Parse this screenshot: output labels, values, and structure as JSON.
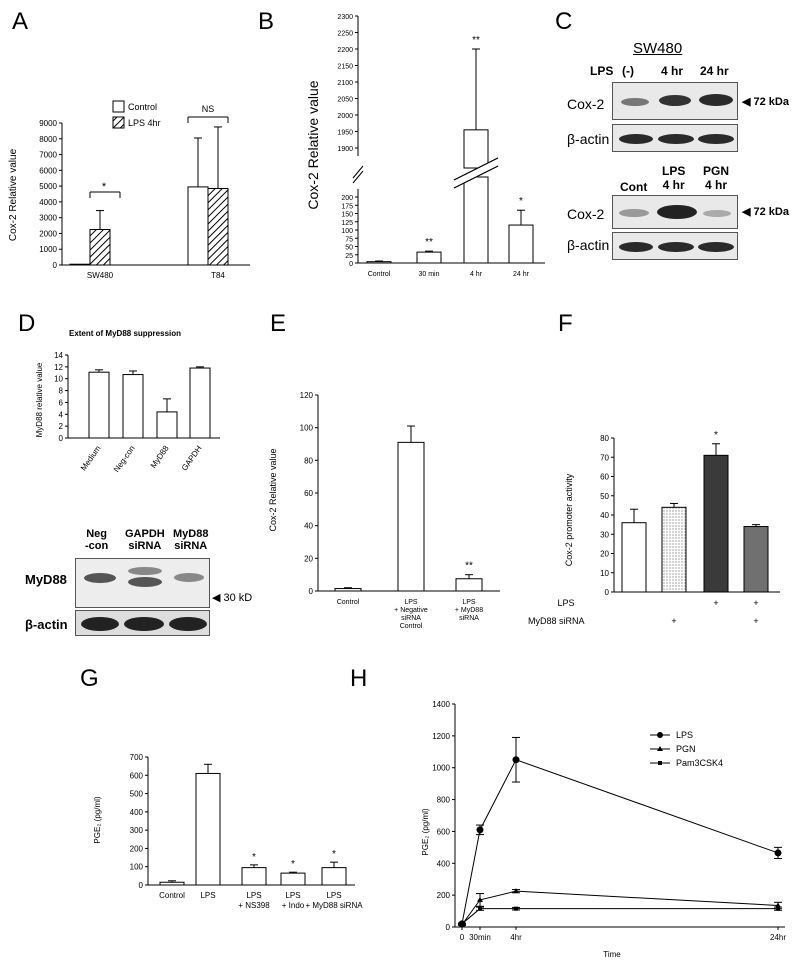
{
  "panels": {
    "A": {
      "label": "A"
    },
    "B": {
      "label": "B"
    },
    "C": {
      "label": "C",
      "title": "SW480",
      "lps_label": "LPS",
      "lanes1": [
        "(-)",
        "4 hr",
        "24 hr"
      ],
      "row1": "Cox-2",
      "row2": "β-actin",
      "kda1": "◀ 72 kDa",
      "lanes2": [
        "Cont",
        "LPS\n4 hr",
        "PGN\n4 hr"
      ],
      "row3": "Cox-2",
      "row4": "β-actin",
      "kda2": "◀ 72 kDa"
    },
    "D": {
      "label": "D",
      "lanes": [
        "Neg\n-con",
        "GAPDH\nsiRNA",
        "MyD88\nsiRNA"
      ],
      "row1": "MyD88",
      "row2": "β-actin",
      "kd": "◀ 30 kD"
    },
    "E": {
      "label": "E"
    },
    "F": {
      "label": "F"
    },
    "G": {
      "label": "G"
    },
    "H": {
      "label": "H"
    }
  },
  "chart_data": [
    {
      "id": "A",
      "type": "bar",
      "categories": [
        "SW480",
        "T84"
      ],
      "series": [
        {
          "name": "Control",
          "values": [
            50,
            4950
          ],
          "errors": [
            0,
            3100
          ]
        },
        {
          "name": "LPS 4hr",
          "values": [
            2250,
            4850
          ],
          "errors": [
            1200,
            3900
          ]
        }
      ],
      "ylabel": "Cox-2  Relative value",
      "ylim": [
        0,
        9000
      ],
      "yticks": [
        "0",
        "1000",
        "2000",
        "3000",
        "4000",
        "5000",
        "6000",
        "7000",
        "8000",
        "9000"
      ],
      "annotations": [
        "*",
        "NS"
      ],
      "legend": "top"
    },
    {
      "id": "B",
      "type": "bar",
      "categories": [
        "Control",
        "30 min",
        "4 hr",
        "24 hr"
      ],
      "values": [
        4,
        33,
        1955,
        115
      ],
      "errors": [
        2,
        3,
        245,
        45
      ],
      "ylabel": "Cox-2  Relative value",
      "axis_break": [
        200,
        1900
      ],
      "yticks_low": [
        "0",
        "25",
        "50",
        "75",
        "100",
        "125",
        "150",
        "175",
        "200"
      ],
      "yticks_high": [
        "1900",
        "1950",
        "2000",
        "2050",
        "2100",
        "2150",
        "2200",
        "2250",
        "2300"
      ],
      "annotations": [
        "",
        "**",
        "**",
        "*"
      ]
    },
    {
      "id": "D",
      "type": "bar",
      "title": "Extent of MyD88 suppression",
      "categories": [
        "Medium",
        "Neg-con",
        "MyD88",
        "GAPDH"
      ],
      "values": [
        11.1,
        10.7,
        4.4,
        11.8
      ],
      "errors": [
        0.4,
        0.6,
        2.2,
        0.2
      ],
      "ylabel": "MyD88  relative value",
      "ylim": [
        0,
        14
      ],
      "yticks": [
        "0",
        "2",
        "4",
        "6",
        "8",
        "10",
        "12",
        "14"
      ]
    },
    {
      "id": "E",
      "type": "bar",
      "categories": [
        "Control",
        "LPS\n+ Negative\nsiRNA\nControl",
        "LPS\n+ MyD88\nsiRNA"
      ],
      "values": [
        1.5,
        91,
        7.5
      ],
      "errors": [
        0.5,
        10,
        2.5
      ],
      "ylabel": "Cox-2  Relative value",
      "ylim": [
        0,
        120
      ],
      "yticks": [
        "0",
        "20",
        "40",
        "60",
        "80",
        "100",
        "120"
      ],
      "annotations": [
        "",
        "",
        "**"
      ]
    },
    {
      "id": "F",
      "type": "bar",
      "values": [
        36,
        44,
        71,
        34
      ],
      "errors": [
        7,
        2,
        6,
        1
      ],
      "ylabel": "Cox-2 promoter activity",
      "ylim": [
        0,
        80
      ],
      "yticks": [
        "0",
        "10",
        "20",
        "30",
        "40",
        "50",
        "60",
        "70",
        "80"
      ],
      "row_labels": [
        "LPS",
        "MyD88 siRNA"
      ],
      "lps_marks": [
        "",
        "",
        "+",
        "+"
      ],
      "sirna_marks": [
        "",
        "+",
        "",
        "+"
      ],
      "annotations": [
        "",
        "",
        "*",
        ""
      ],
      "fills": [
        "#ffffff",
        "#e8e8e8",
        "#3a3a3a",
        "#707070"
      ]
    },
    {
      "id": "G",
      "type": "bar",
      "categories": [
        "Control",
        "LPS",
        "LPS\n+ NS398",
        "LPS\n+ Indo",
        "LPS\n+ MyD88 siRNA"
      ],
      "values": [
        15,
        610,
        95,
        65,
        95
      ],
      "errors": [
        8,
        50,
        15,
        5,
        30
      ],
      "ylabel": "PGE₂ (pg/ml)",
      "ylim": [
        0,
        700
      ],
      "yticks": [
        "0",
        "100",
        "200",
        "300",
        "400",
        "500",
        "600",
        "700"
      ],
      "annotations": [
        "",
        "",
        "*",
        "*",
        "*"
      ]
    },
    {
      "id": "H",
      "type": "line",
      "x": [
        0,
        0.5,
        4,
        24
      ],
      "xticks": [
        "0",
        "30min",
        "4hr",
        "24hr"
      ],
      "series": [
        {
          "name": "LPS",
          "values": [
            20,
            610,
            1050,
            465
          ],
          "errors": [
            5,
            30,
            140,
            35
          ]
        },
        {
          "name": "PGN",
          "values": [
            15,
            170,
            225,
            135
          ],
          "errors": [
            5,
            40,
            10,
            20
          ]
        },
        {
          "name": "Pam3CSK4",
          "values": [
            20,
            115,
            115,
            115
          ],
          "errors": [
            5,
            10,
            8,
            10
          ]
        }
      ],
      "xlabel": "Time",
      "ylabel": "PGE₂ (pg/ml)",
      "ylim": [
        0,
        1400
      ],
      "yticks": [
        "0",
        "200",
        "400",
        "600",
        "800",
        "1000",
        "1200",
        "1400"
      ],
      "legend": "top-right"
    }
  ]
}
